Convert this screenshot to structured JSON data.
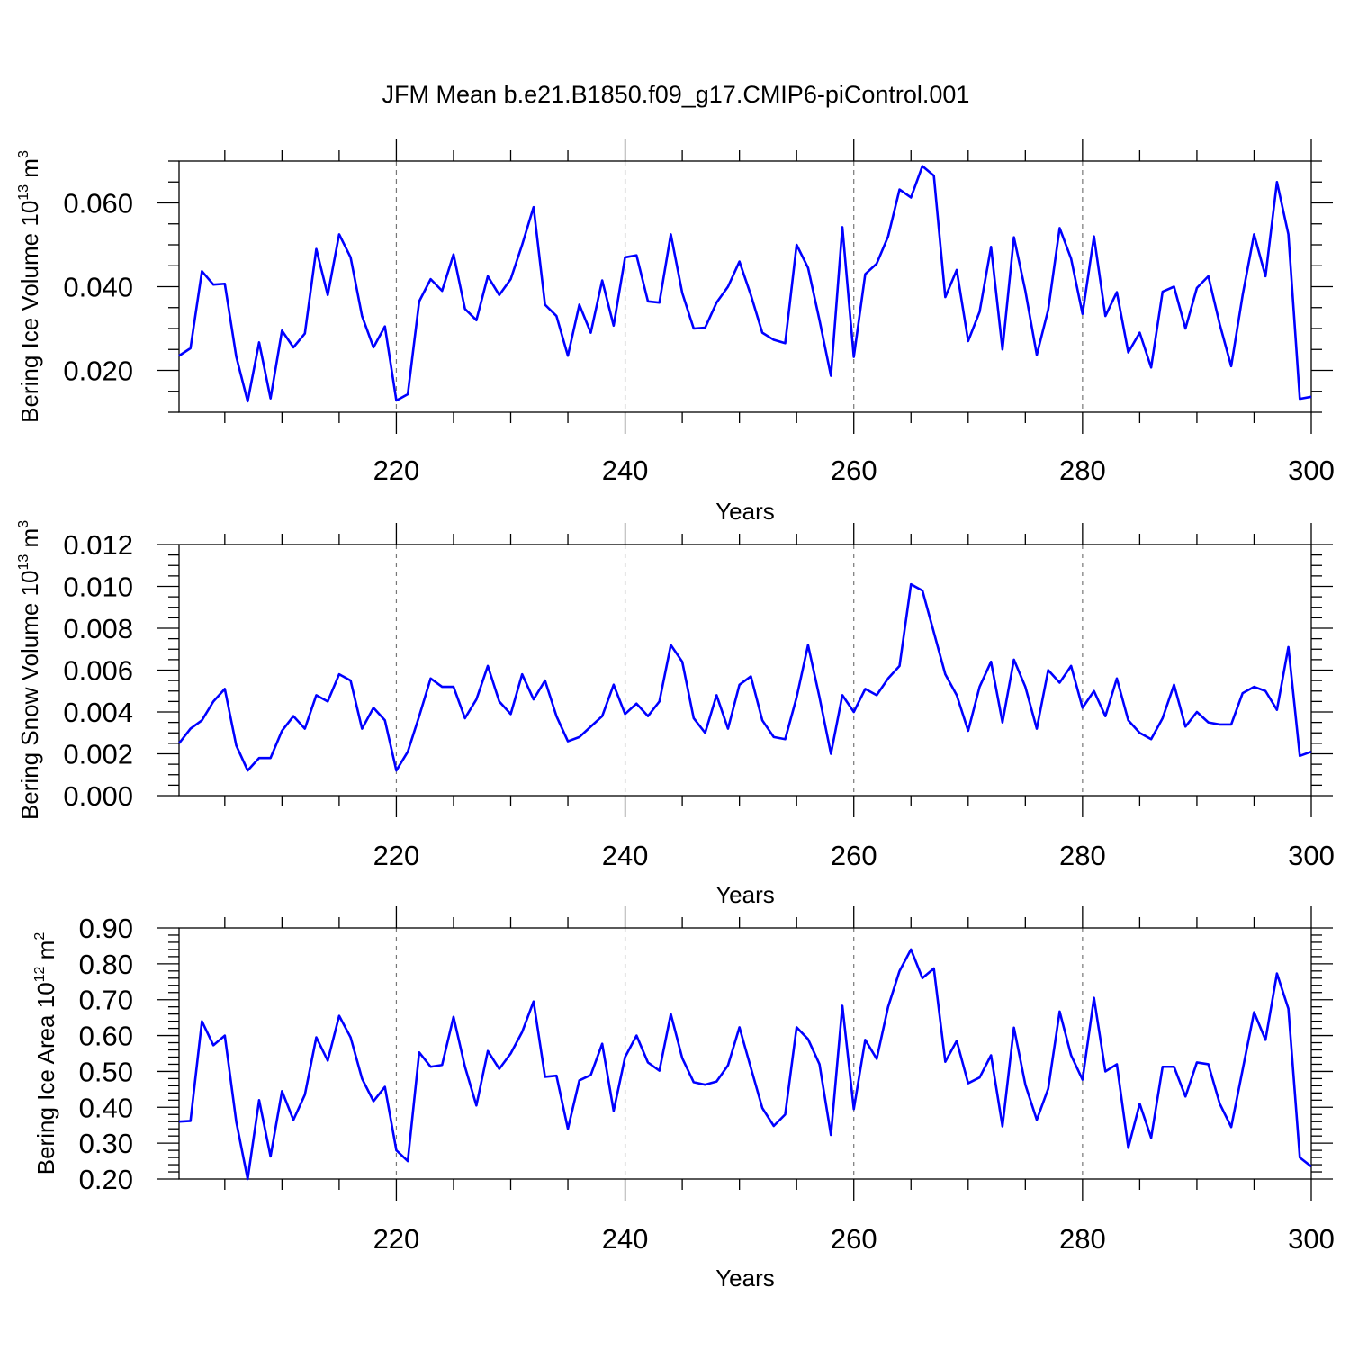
{
  "chart_data": {
    "title": "JFM Mean b.e21.B1850.f09_g17.CMIP6-piControl.001",
    "type": "line",
    "x_start": 201,
    "x_end": 300,
    "line_color": "#0000ff",
    "panels": [
      {
        "type": "line",
        "ylabel": {
          "main": "Bering Ice Volume 10",
          "sup": "13",
          "mid": " m",
          "sup2": "3"
        },
        "xlabel": "Years",
        "xlim": [
          201,
          300
        ],
        "ylim": [
          0.01,
          0.07
        ],
        "yticks": [
          0.02,
          0.04,
          0.06
        ],
        "ytick_labels": [
          "0.020",
          "0.040",
          "0.060"
        ],
        "yminor_step": 0.005,
        "xticks": [
          220,
          240,
          260,
          280,
          300
        ],
        "xtick_labels": [
          "220",
          "240",
          "260",
          "280",
          "300"
        ],
        "grid_x": [
          220,
          240,
          260,
          280
        ],
        "values": [
          0.0235,
          0.0253,
          0.0437,
          0.0405,
          0.0407,
          0.0233,
          0.0126,
          0.0267,
          0.0133,
          0.0295,
          0.0255,
          0.0288,
          0.049,
          0.038,
          0.0525,
          0.047,
          0.033,
          0.0255,
          0.0305,
          0.0128,
          0.0143,
          0.0365,
          0.0418,
          0.039,
          0.0477,
          0.0347,
          0.032,
          0.0425,
          0.038,
          0.0418,
          0.05,
          0.059,
          0.0357,
          0.033,
          0.0235,
          0.0357,
          0.029,
          0.0415,
          0.0307,
          0.047,
          0.0475,
          0.0365,
          0.0362,
          0.0525,
          0.0385,
          0.03,
          0.0302,
          0.0362,
          0.04,
          0.046,
          0.038,
          0.029,
          0.0273,
          0.0265,
          0.05,
          0.0445,
          0.032,
          0.0187,
          0.0542,
          0.0232,
          0.043,
          0.0455,
          0.052,
          0.0632,
          0.0613,
          0.0688,
          0.0665,
          0.0375,
          0.044,
          0.027,
          0.034,
          0.0495,
          0.025,
          0.0518,
          0.039,
          0.0237,
          0.0345,
          0.054,
          0.0467,
          0.0335,
          0.052,
          0.033,
          0.0387,
          0.0243,
          0.029,
          0.0207,
          0.0388,
          0.04,
          0.03,
          0.0397,
          0.0425,
          0.031,
          0.021,
          0.038,
          0.0525,
          0.0425,
          0.065,
          0.0525,
          0.0132,
          0.0137
        ]
      },
      {
        "type": "line",
        "ylabel": {
          "main": "Bering Snow Volume 10",
          "sup": "13",
          "mid": " m",
          "sup2": "3"
        },
        "xlabel": "Years",
        "xlim": [
          201,
          300
        ],
        "ylim": [
          0.0,
          0.012
        ],
        "yticks": [
          0.0,
          0.002,
          0.004,
          0.006,
          0.008,
          0.01,
          0.012
        ],
        "ytick_labels": [
          "0.000",
          "0.002",
          "0.004",
          "0.006",
          "0.008",
          "0.010",
          "0.012"
        ],
        "yminor_step": 0.0005,
        "xticks": [
          220,
          240,
          260,
          280,
          300
        ],
        "xtick_labels": [
          "220",
          "240",
          "260",
          "280",
          "300"
        ],
        "grid_x": [
          220,
          240,
          260,
          280
        ],
        "values": [
          0.0025,
          0.0032,
          0.0036,
          0.0045,
          0.0051,
          0.0024,
          0.0012,
          0.0018,
          0.0018,
          0.0031,
          0.0038,
          0.0032,
          0.0048,
          0.0045,
          0.0058,
          0.0055,
          0.0032,
          0.0042,
          0.0036,
          0.0012,
          0.0021,
          0.0038,
          0.0056,
          0.0052,
          0.0052,
          0.0037,
          0.0046,
          0.0062,
          0.0045,
          0.0039,
          0.0058,
          0.0046,
          0.0055,
          0.0038,
          0.0026,
          0.0028,
          0.0033,
          0.0038,
          0.0053,
          0.0039,
          0.0044,
          0.0038,
          0.0045,
          0.0072,
          0.0064,
          0.0037,
          0.003,
          0.0048,
          0.0032,
          0.0053,
          0.0057,
          0.0036,
          0.0028,
          0.0027,
          0.0047,
          0.0072,
          0.0047,
          0.002,
          0.0048,
          0.004,
          0.0051,
          0.0048,
          0.0056,
          0.0062,
          0.0101,
          0.0098,
          0.0078,
          0.0058,
          0.0048,
          0.0031,
          0.0052,
          0.0064,
          0.0035,
          0.0065,
          0.0052,
          0.0032,
          0.006,
          0.0054,
          0.0062,
          0.0042,
          0.005,
          0.0038,
          0.0056,
          0.0036,
          0.003,
          0.0027,
          0.0037,
          0.0053,
          0.0033,
          0.004,
          0.0035,
          0.0034,
          0.0034,
          0.0049,
          0.0052,
          0.005,
          0.0041,
          0.0071,
          0.0019,
          0.0021
        ]
      },
      {
        "type": "line",
        "ylabel": {
          "main": "Bering Ice Area 10",
          "sup": "12",
          "mid": " m",
          "sup2": "2"
        },
        "xlabel": "Years",
        "xlim": [
          201,
          300
        ],
        "ylim": [
          0.2,
          0.9
        ],
        "yticks": [
          0.2,
          0.3,
          0.4,
          0.5,
          0.6,
          0.7,
          0.8,
          0.9
        ],
        "ytick_labels": [
          "0.20",
          "0.30",
          "0.40",
          "0.50",
          "0.60",
          "0.70",
          "0.80",
          "0.90"
        ],
        "yminor_step": 0.02,
        "xticks": [
          220,
          240,
          260,
          280,
          300
        ],
        "xtick_labels": [
          "220",
          "240",
          "260",
          "280",
          "300"
        ],
        "grid_x": [
          220,
          240,
          260,
          280
        ],
        "values": [
          0.36,
          0.362,
          0.64,
          0.573,
          0.6,
          0.36,
          0.2,
          0.42,
          0.263,
          0.445,
          0.365,
          0.435,
          0.595,
          0.53,
          0.655,
          0.595,
          0.48,
          0.417,
          0.457,
          0.28,
          0.25,
          0.553,
          0.513,
          0.518,
          0.652,
          0.513,
          0.405,
          0.557,
          0.507,
          0.55,
          0.61,
          0.695,
          0.485,
          0.488,
          0.34,
          0.475,
          0.49,
          0.577,
          0.39,
          0.54,
          0.6,
          0.525,
          0.502,
          0.66,
          0.537,
          0.47,
          0.463,
          0.472,
          0.517,
          0.623,
          0.51,
          0.398,
          0.348,
          0.38,
          0.623,
          0.59,
          0.52,
          0.323,
          0.683,
          0.395,
          0.588,
          0.535,
          0.68,
          0.78,
          0.84,
          0.76,
          0.787,
          0.527,
          0.585,
          0.467,
          0.483,
          0.545,
          0.347,
          0.622,
          0.463,
          0.365,
          0.452,
          0.667,
          0.545,
          0.477,
          0.705,
          0.5,
          0.52,
          0.287,
          0.41,
          0.315,
          0.513,
          0.513,
          0.43,
          0.525,
          0.52,
          0.41,
          0.345,
          0.505,
          0.665,
          0.588,
          0.773,
          0.675,
          0.26,
          0.235
        ]
      }
    ]
  }
}
